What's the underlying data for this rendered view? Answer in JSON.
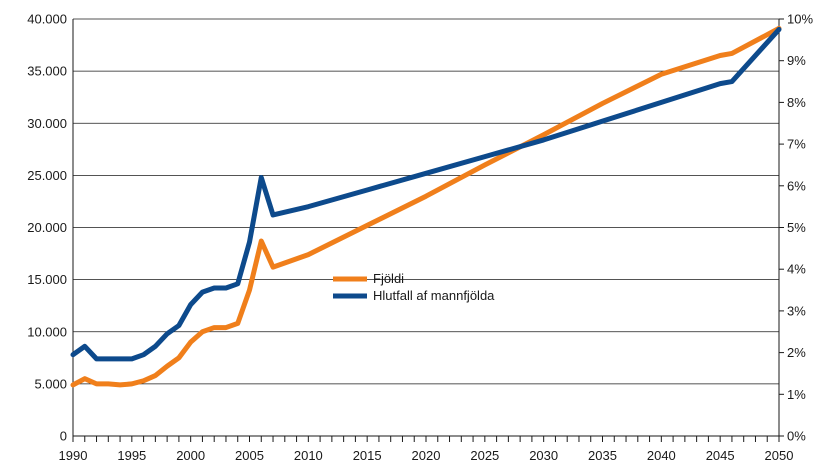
{
  "chart_data": {
    "type": "line",
    "title": "",
    "xlabel": "",
    "ylabel_left": "",
    "ylabel_right": "",
    "x": [
      1990,
      1991,
      1992,
      1993,
      1994,
      1995,
      1996,
      1997,
      1998,
      1999,
      2000,
      2001,
      2002,
      2003,
      2004,
      2005,
      2006,
      2007,
      2010,
      2015,
      2020,
      2025,
      2030,
      2035,
      2040,
      2045,
      2046,
      2050
    ],
    "xlim": [
      1990,
      2050
    ],
    "x_tick_labels": [
      "1990",
      "1995",
      "2000",
      "2005",
      "2010",
      "2015",
      "2020",
      "2025",
      "2030",
      "2035",
      "2040",
      "2045",
      "2050"
    ],
    "y_left_lim": [
      0,
      40000
    ],
    "y_left_tick_labels": [
      "0",
      "5.000",
      "10.000",
      "15.000",
      "20.000",
      "25.000",
      "30.000",
      "35.000",
      "40.000"
    ],
    "y_right_lim": [
      0,
      10
    ],
    "y_right_tick_labels": [
      "0%",
      "1%",
      "2%",
      "3%",
      "4%",
      "5%",
      "6%",
      "7%",
      "8%",
      "9%",
      "10%"
    ],
    "grid": "horizontal",
    "legend_position": "center",
    "series": [
      {
        "name": "Fjöldi",
        "axis": "left",
        "color": "#f07f1b",
        "values": [
          4900,
          5500,
          5000,
          5000,
          4900,
          5000,
          5300,
          5800,
          6700,
          7500,
          9000,
          10000,
          10400,
          10400,
          10800,
          14000,
          18700,
          16200,
          17400,
          20200,
          23000,
          26000,
          28900,
          31900,
          34700,
          36500,
          36700,
          39100
        ]
      },
      {
        "name": "Hlutfall af mannfjölda",
        "axis": "right",
        "color": "#0d4a8c",
        "values": [
          1.95,
          2.15,
          1.85,
          1.85,
          1.85,
          1.85,
          1.95,
          2.15,
          2.45,
          2.65,
          3.15,
          3.45,
          3.55,
          3.55,
          3.65,
          4.65,
          6.2,
          5.3,
          5.5,
          5.9,
          6.3,
          6.7,
          7.1,
          7.55,
          8.0,
          8.45,
          8.5,
          9.75
        ]
      }
    ]
  }
}
